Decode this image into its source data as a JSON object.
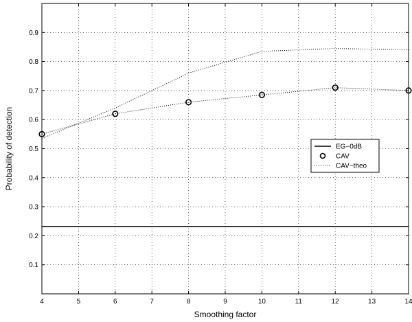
{
  "chart_data": {
    "type": "line",
    "title": "",
    "xlabel": "Smoothing factor",
    "ylabel": "Probability of detection",
    "xlim": [
      4,
      14
    ],
    "ylim": [
      0,
      1
    ],
    "x_ticks": [
      4,
      5,
      6,
      7,
      8,
      9,
      10,
      11,
      12,
      13,
      14
    ],
    "y_ticks": [
      0.1,
      0.2,
      0.3,
      0.4,
      0.5,
      0.6,
      0.7,
      0.8,
      0.9
    ],
    "grid": true,
    "legend_position": "right",
    "series": [
      {
        "name": "EG−0dB",
        "style": "solid",
        "color": "#000000",
        "x": [
          4,
          14
        ],
        "y": [
          0.232,
          0.232
        ]
      },
      {
        "name": "CAV",
        "style": "dotted-with-circle-markers",
        "color": "#000000",
        "x": [
          4,
          6,
          8,
          10,
          12,
          14
        ],
        "y": [
          0.55,
          0.62,
          0.66,
          0.685,
          0.71,
          0.7
        ]
      },
      {
        "name": "CAV−theo",
        "style": "dotted",
        "color": "#000000",
        "x": [
          4,
          6,
          8,
          10,
          12,
          14
        ],
        "y": [
          0.535,
          0.64,
          0.76,
          0.835,
          0.845,
          0.84
        ]
      }
    ]
  }
}
